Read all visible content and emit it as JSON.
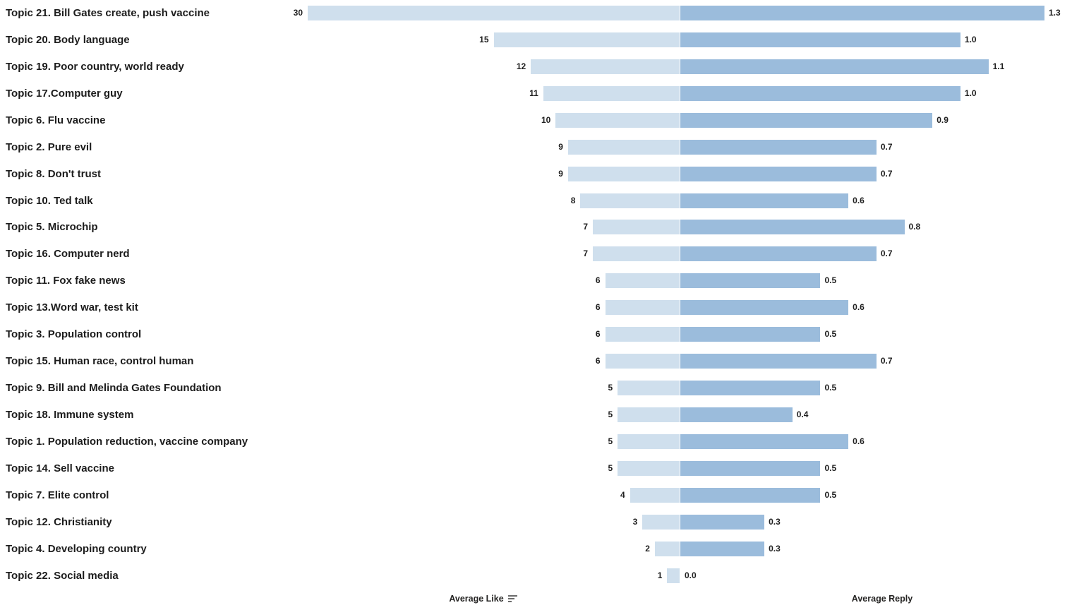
{
  "axis": {
    "left_title": "Average Like",
    "right_title": "Average Reply"
  },
  "colors": {
    "like_bar": "#cfdfed",
    "reply_bar": "#9bbcdc",
    "text": "#1c1c1c",
    "background": "#ffffff",
    "sort_icon": "#6b6b6b"
  },
  "chart_data": {
    "type": "bar",
    "orientation": "horizontal-diverging",
    "title": "",
    "description": "Butterfly / tornado chart: topics listed vertically, Average Like bars extend left of center axis, Average Reply bars extend right, sorted descending by Average Like",
    "grid": false,
    "legend_position": "none",
    "sort": "descending-by-average-like",
    "categories": [
      "Topic 21. Bill Gates create, push vaccine",
      "Topic 20. Body language",
      "Topic 19. Poor country, world ready",
      "Topic 17.Computer guy",
      "Topic 6. Flu vaccine",
      "Topic 2. Pure evil",
      "Topic 8. Don't trust",
      "Topic 10. Ted talk",
      "Topic 5. Microchip",
      "Topic 16. Computer nerd",
      "Topic 11. Fox fake news",
      "Topic 13.Word war, test kit",
      "Topic 3. Population control",
      "Topic 15. Human race, control human",
      "Topic 9. Bill and Melinda Gates Foundation",
      "Topic 18. Immune system",
      "Topic 1. Population reduction, vaccine company",
      "Topic 14. Sell vaccine",
      "Topic 7. Elite control",
      "Topic 12. Christianity",
      "Topic 4. Developing country",
      "Topic 22. Social media"
    ],
    "series": [
      {
        "name": "Average Like",
        "side": "left",
        "color": "#cfdfed",
        "axis_range": [
          0,
          30
        ],
        "values": [
          30,
          15,
          12,
          11,
          10,
          9,
          9,
          8,
          7,
          7,
          6,
          6,
          6,
          6,
          5,
          5,
          5,
          5,
          4,
          3,
          2,
          1
        ],
        "labels": [
          "30",
          "15",
          "12",
          "11",
          "10",
          "9",
          "9",
          "8",
          "7",
          "7",
          "6",
          "6",
          "6",
          "6",
          "5",
          "5",
          "5",
          "5",
          "4",
          "3",
          "2",
          "1"
        ]
      },
      {
        "name": "Average Reply",
        "side": "right",
        "color": "#9bbcdc",
        "axis_range": [
          0,
          1.3
        ],
        "values": [
          1.3,
          1.0,
          1.1,
          1.0,
          0.9,
          0.7,
          0.7,
          0.6,
          0.8,
          0.7,
          0.5,
          0.6,
          0.5,
          0.7,
          0.5,
          0.4,
          0.6,
          0.5,
          0.5,
          0.3,
          0.3,
          0.0
        ],
        "labels": [
          "1.3",
          "1.0",
          "1.1",
          "1.0",
          "0.9",
          "0.7",
          "0.7",
          "0.6",
          "0.8",
          "0.7",
          "0.5",
          "0.6",
          "0.5",
          "0.7",
          "0.5",
          "0.4",
          "0.6",
          "0.5",
          "0.5",
          "0.3",
          "0.3",
          "0.0"
        ]
      }
    ]
  }
}
